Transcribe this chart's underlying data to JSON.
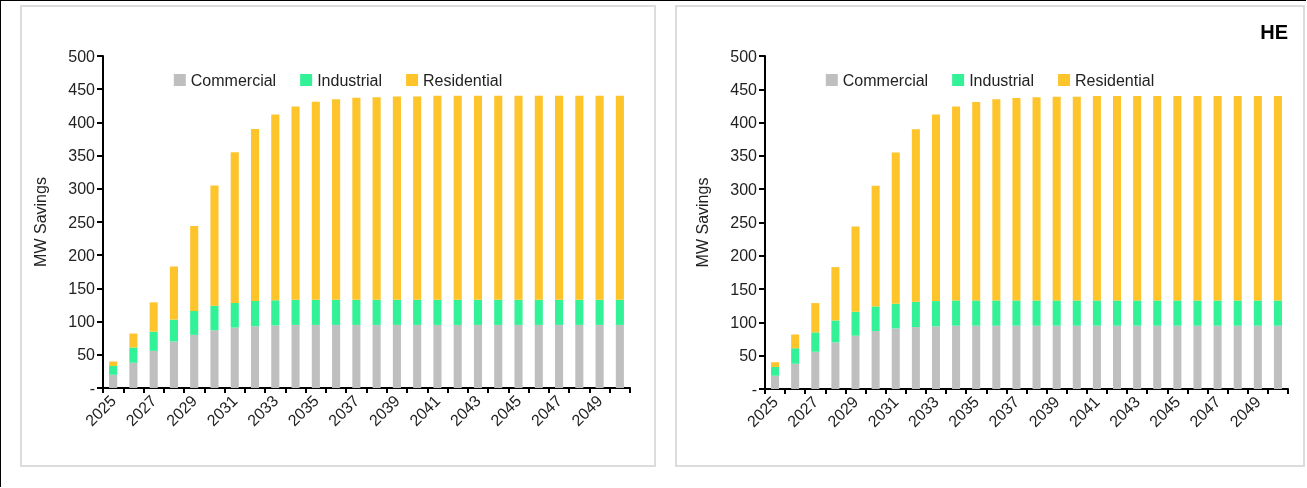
{
  "chart_data": [
    {
      "type": "bar",
      "stacked": true,
      "ylabel": "MW Savings",
      "legend": "top",
      "grid": false,
      "categories": [
        "2025",
        null,
        "2027",
        null,
        "2029",
        null,
        "2031",
        null,
        "2033",
        null,
        "2035",
        null,
        "2037",
        null,
        "2039",
        null,
        "2041",
        null,
        "2043",
        null,
        "2045",
        null,
        "2047",
        null,
        "2049",
        null
      ],
      "ylim": [
        0,
        500
      ],
      "yticks": [
        {
          "value": 0,
          "label": "-"
        },
        50,
        100,
        150,
        200,
        250,
        300,
        350,
        400,
        450,
        500
      ],
      "series": [
        {
          "name": "Commercial",
          "color": "#bfbfbf",
          "values": [
            20,
            38,
            56,
            70,
            80,
            87,
            91,
            93,
            94,
            95,
            95,
            95,
            95,
            95,
            95,
            95,
            95,
            95,
            95,
            95,
            95,
            95,
            95,
            95,
            95,
            95
          ]
        },
        {
          "name": "Industrial",
          "color": "#33f196",
          "values": [
            13,
            23,
            29,
            33,
            36,
            37,
            37,
            38,
            38,
            38,
            38,
            38,
            38,
            38,
            38,
            38,
            38,
            38,
            38,
            38,
            38,
            38,
            38,
            38,
            38,
            38
          ]
        },
        {
          "name": "Residential",
          "color": "#fec42c",
          "values": [
            7,
            21,
            44,
            80,
            128,
            181,
            227,
            259,
            280,
            291,
            298,
            302,
            304,
            305,
            306,
            306,
            307,
            307,
            307,
            307,
            307,
            307,
            307,
            307,
            307,
            307
          ]
        }
      ]
    },
    {
      "type": "bar",
      "stacked": true,
      "title": "HE",
      "ylabel": "MW Savings",
      "legend": "top",
      "grid": false,
      "categories": [
        "2025",
        null,
        "2027",
        null,
        "2029",
        null,
        "2031",
        null,
        "2033",
        null,
        "2035",
        null,
        "2037",
        null,
        "2039",
        null,
        "2041",
        null,
        "2043",
        null,
        "2045",
        null,
        "2047",
        null,
        "2049",
        null
      ],
      "ylim": [
        0,
        500
      ],
      "yticks": [
        {
          "value": 0,
          "label": "-"
        },
        50,
        100,
        150,
        200,
        250,
        300,
        350,
        400,
        450,
        500
      ],
      "series": [
        {
          "name": "Commercial",
          "color": "#bfbfbf",
          "values": [
            20,
            38,
            56,
            70,
            80,
            87,
            91,
            93,
            94,
            95,
            95,
            95,
            95,
            95,
            95,
            95,
            95,
            95,
            95,
            95,
            95,
            95,
            95,
            95,
            95,
            95
          ]
        },
        {
          "name": "Industrial",
          "color": "#33f196",
          "values": [
            13,
            23,
            29,
            33,
            36,
            37,
            37,
            38,
            38,
            38,
            38,
            38,
            38,
            38,
            38,
            38,
            38,
            38,
            38,
            38,
            38,
            38,
            38,
            38,
            38,
            38
          ]
        },
        {
          "name": "Residential",
          "color": "#fec42c",
          "values": [
            7,
            21,
            44,
            80,
            128,
            181,
            227,
            259,
            280,
            291,
            298,
            302,
            304,
            305,
            306,
            306,
            307,
            307,
            307,
            307,
            307,
            307,
            307,
            307,
            307,
            307
          ]
        }
      ]
    }
  ]
}
